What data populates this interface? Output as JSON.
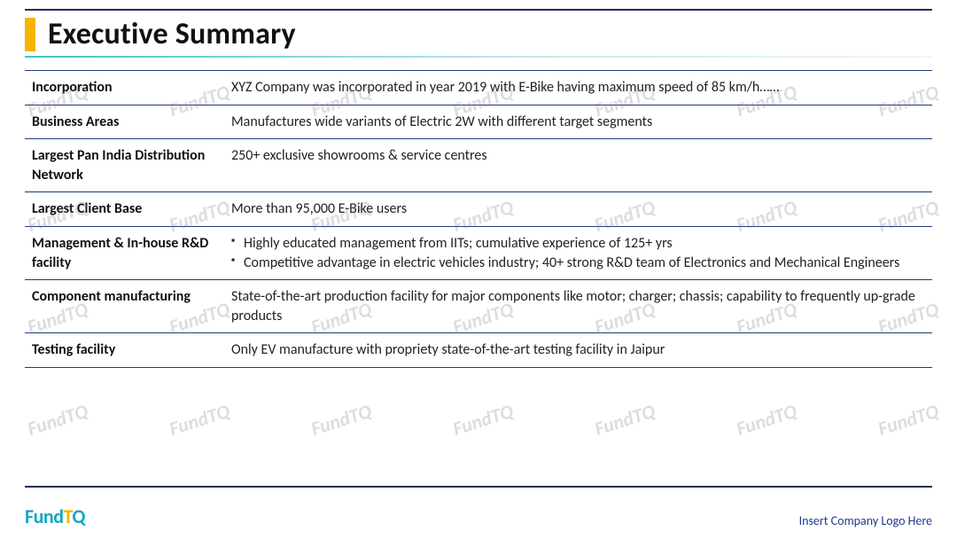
{
  "title": "Executive Summary",
  "colors": {
    "rule": "#1c2e5b",
    "accent": "#f5b400",
    "underline_from": "#3fc1cc",
    "row_border": "#1c3c7a",
    "logo_primary": "#17a6c2",
    "logo_accent": "#f5b400",
    "footer_text": "#1e3a8a",
    "watermark": "rgba(120,120,120,0.25)"
  },
  "watermark_text": "FundTQ",
  "table": {
    "rows": [
      {
        "label": "Incorporation",
        "value": "XYZ Company was incorporated in year 2019 with E-Bike having maximum speed of 85 km/h……"
      },
      {
        "label": "Business Areas",
        "value": "Manufactures wide variants of Electric 2W with different target segments"
      },
      {
        "label": "Largest Pan India Distribution Network",
        "value": "250+ exclusive showrooms & service centres"
      },
      {
        "label": "Largest Client Base",
        "value": "More than 95,000 E-Bike users"
      },
      {
        "label": "Management & In-house R&D facility",
        "bullets": [
          "Highly educated management from IITs; cumulative experience of 125+ yrs",
          "Competitive advantage in electric vehicles industry; 40+ strong R&D team of Electronics and Mechanical Engineers"
        ]
      },
      {
        "label": "Component manufacturing",
        "value": "State-of-the-art production facility for major components like motor; charger; chassis; capability to frequently up-grade products"
      },
      {
        "label": "Testing facility",
        "value": "Only EV manufacture with propriety state-of-the-art testing facility in Jaipur"
      }
    ]
  },
  "footer": {
    "logo_parts": {
      "fund": "Fund",
      "t": "T",
      "q": "Q"
    },
    "logo_placeholder": "Insert Company Logo Here"
  }
}
